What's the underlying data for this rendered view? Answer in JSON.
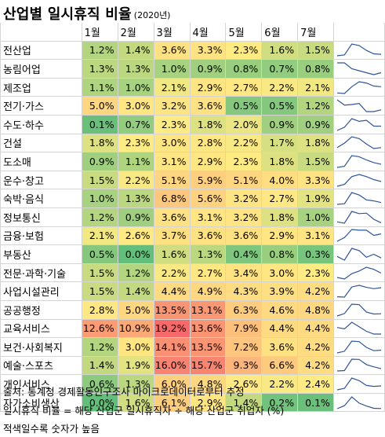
{
  "title": "산업별 일시휴직 비율",
  "subtitle": "(2020년)",
  "months": [
    "1월",
    "2월",
    "3월",
    "4월",
    "5월",
    "6월",
    "7월"
  ],
  "chart_data": {
    "type": "table",
    "categories": [
      "전산업",
      "농림어업",
      "제조업",
      "전기·가스",
      "수도·하수",
      "건설",
      "도소매",
      "운수·창고",
      "숙박·음식",
      "정보통신",
      "금융·보험",
      "부동산",
      "전문·과학·기술",
      "사업시설관리",
      "공공행정",
      "교육서비스",
      "보건·사회복지",
      "예술·스포츠",
      "개인서비스",
      "자가소비생산"
    ],
    "columns": [
      "1월",
      "2월",
      "3월",
      "4월",
      "5월",
      "6월",
      "7월"
    ],
    "rows": [
      {
        "label": "전산업",
        "values": [
          "1.2%",
          "1.4%",
          "3.6%",
          "3.3%",
          "2.3%",
          "1.6%",
          "1.5%"
        ],
        "nums": [
          1.2,
          1.4,
          3.6,
          3.3,
          2.3,
          1.6,
          1.5
        ]
      },
      {
        "label": "농림어업",
        "values": [
          "1.3%",
          "1.3%",
          "1.0%",
          "0.9%",
          "0.8%",
          "0.7%",
          "0.8%"
        ],
        "nums": [
          1.3,
          1.3,
          1.0,
          0.9,
          0.8,
          0.7,
          0.8
        ]
      },
      {
        "label": "제조업",
        "values": [
          "1.1%",
          "1.0%",
          "2.1%",
          "2.9%",
          "2.7%",
          "2.2%",
          "2.1%"
        ],
        "nums": [
          1.1,
          1.0,
          2.1,
          2.9,
          2.7,
          2.2,
          2.1
        ]
      },
      {
        "label": "전기·가스",
        "values": [
          "5.0%",
          "3.0%",
          "3.2%",
          "3.6%",
          "0.5%",
          "0.5%",
          "1.2%"
        ],
        "nums": [
          5.0,
          3.0,
          3.2,
          3.6,
          0.5,
          0.5,
          1.2
        ]
      },
      {
        "label": "수도·하수",
        "values": [
          "0.1%",
          "0.7%",
          "2.3%",
          "1.8%",
          "2.0%",
          "0.9%",
          "0.9%"
        ],
        "nums": [
          0.1,
          0.7,
          2.3,
          1.8,
          2.0,
          0.9,
          0.9
        ]
      },
      {
        "label": "건설",
        "values": [
          "1.8%",
          "2.3%",
          "3.0%",
          "2.8%",
          "2.2%",
          "1.7%",
          "1.8%"
        ],
        "nums": [
          1.8,
          2.3,
          3.0,
          2.8,
          2.2,
          1.7,
          1.8
        ]
      },
      {
        "label": "도소매",
        "values": [
          "0.9%",
          "1.1%",
          "3.1%",
          "2.9%",
          "2.3%",
          "1.8%",
          "1.5%"
        ],
        "nums": [
          0.9,
          1.1,
          3.1,
          2.9,
          2.3,
          1.8,
          1.5
        ]
      },
      {
        "label": "운수·창고",
        "values": [
          "1.5%",
          "2.2%",
          "5.1%",
          "5.9%",
          "5.1%",
          "4.0%",
          "3.3%"
        ],
        "nums": [
          1.5,
          2.2,
          5.1,
          5.9,
          5.1,
          4.0,
          3.3
        ]
      },
      {
        "label": "숙박·음식",
        "values": [
          "1.0%",
          "1.3%",
          "6.8%",
          "5.6%",
          "3.2%",
          "2.7%",
          "1.9%"
        ],
        "nums": [
          1.0,
          1.3,
          6.8,
          5.6,
          3.2,
          2.7,
          1.9
        ]
      },
      {
        "label": "정보통신",
        "values": [
          "1.2%",
          "0.9%",
          "3.6%",
          "3.1%",
          "3.2%",
          "1.8%",
          "1.0%"
        ],
        "nums": [
          1.2,
          0.9,
          3.6,
          3.1,
          3.2,
          1.8,
          1.0
        ]
      },
      {
        "label": "금융·보험",
        "values": [
          "2.1%",
          "2.6%",
          "3.7%",
          "3.6%",
          "3.6%",
          "2.9%",
          "3.1%"
        ],
        "nums": [
          2.1,
          2.6,
          3.7,
          3.6,
          3.6,
          2.9,
          3.1
        ]
      },
      {
        "label": "부동산",
        "values": [
          "0.5%",
          "0.0%",
          "1.6%",
          "1.3%",
          "0.4%",
          "0.8%",
          "0.3%"
        ],
        "nums": [
          0.5,
          0.0,
          1.6,
          1.3,
          0.4,
          0.8,
          0.3
        ]
      },
      {
        "label": "전문·과학·기술",
        "values": [
          "1.5%",
          "1.2%",
          "2.2%",
          "2.7%",
          "3.4%",
          "3.0%",
          "2.3%"
        ],
        "nums": [
          1.5,
          1.2,
          2.2,
          2.7,
          3.4,
          3.0,
          2.3
        ]
      },
      {
        "label": "사업시설관리",
        "values": [
          "1.5%",
          "1.4%",
          "4.4%",
          "4.9%",
          "4.3%",
          "3.9%",
          "4.2%"
        ],
        "nums": [
          1.5,
          1.4,
          4.4,
          4.9,
          4.3,
          3.9,
          4.2
        ]
      },
      {
        "label": "공공행정",
        "values": [
          "2.8%",
          "5.0%",
          "13.5%",
          "13.1%",
          "6.3%",
          "4.6%",
          "4.8%"
        ],
        "nums": [
          2.8,
          5.0,
          13.5,
          13.1,
          6.3,
          4.6,
          4.8
        ]
      },
      {
        "label": "교육서비스",
        "values": [
          "12.6%",
          "10.9%",
          "19.2%",
          "13.6%",
          "7.9%",
          "4.4%",
          "4.4%"
        ],
        "nums": [
          12.6,
          10.9,
          19.2,
          13.6,
          7.9,
          4.4,
          4.4
        ]
      },
      {
        "label": "보건·사회복지",
        "values": [
          "1.2%",
          "3.0%",
          "14.1%",
          "13.5%",
          "7.2%",
          "3.6%",
          "4.2%"
        ],
        "nums": [
          1.2,
          3.0,
          14.1,
          13.5,
          7.2,
          3.6,
          4.2
        ]
      },
      {
        "label": "예술·스포츠",
        "values": [
          "1.4%",
          "1.9%",
          "16.0%",
          "15.7%",
          "9.3%",
          "6.6%",
          "4.2%"
        ],
        "nums": [
          1.4,
          1.9,
          16.0,
          15.7,
          9.3,
          6.6,
          4.2
        ]
      },
      {
        "label": "개인서비스",
        "values": [
          "0.6%",
          "1.3%",
          "6.0%",
          "4.8%",
          "2.6%",
          "2.2%",
          "2.4%"
        ],
        "nums": [
          0.6,
          1.3,
          6.0,
          4.8,
          2.6,
          2.2,
          2.4
        ]
      },
      {
        "label": "자가소비생산",
        "values": [
          "0.0%",
          "1.6%",
          "6.1%",
          "2.9%",
          "1.4%",
          "0.2%",
          "0.1%"
        ],
        "nums": [
          0.0,
          1.6,
          6.1,
          2.9,
          1.4,
          0.2,
          0.1
        ]
      }
    ],
    "color_scale": {
      "low": "#63be7b",
      "mid": "#ffeb84",
      "high": "#f8696b"
    }
  },
  "footer": {
    "source": "출처: 통계청 경제활동인구조사 마이크로데이터로부터 추정",
    "definition": "일시휴직 비율 = 해당 산업군 일시휴직자 ÷ 해당 산업군 취업자  (%)",
    "note": "적색일수록 숫자가 높음"
  }
}
